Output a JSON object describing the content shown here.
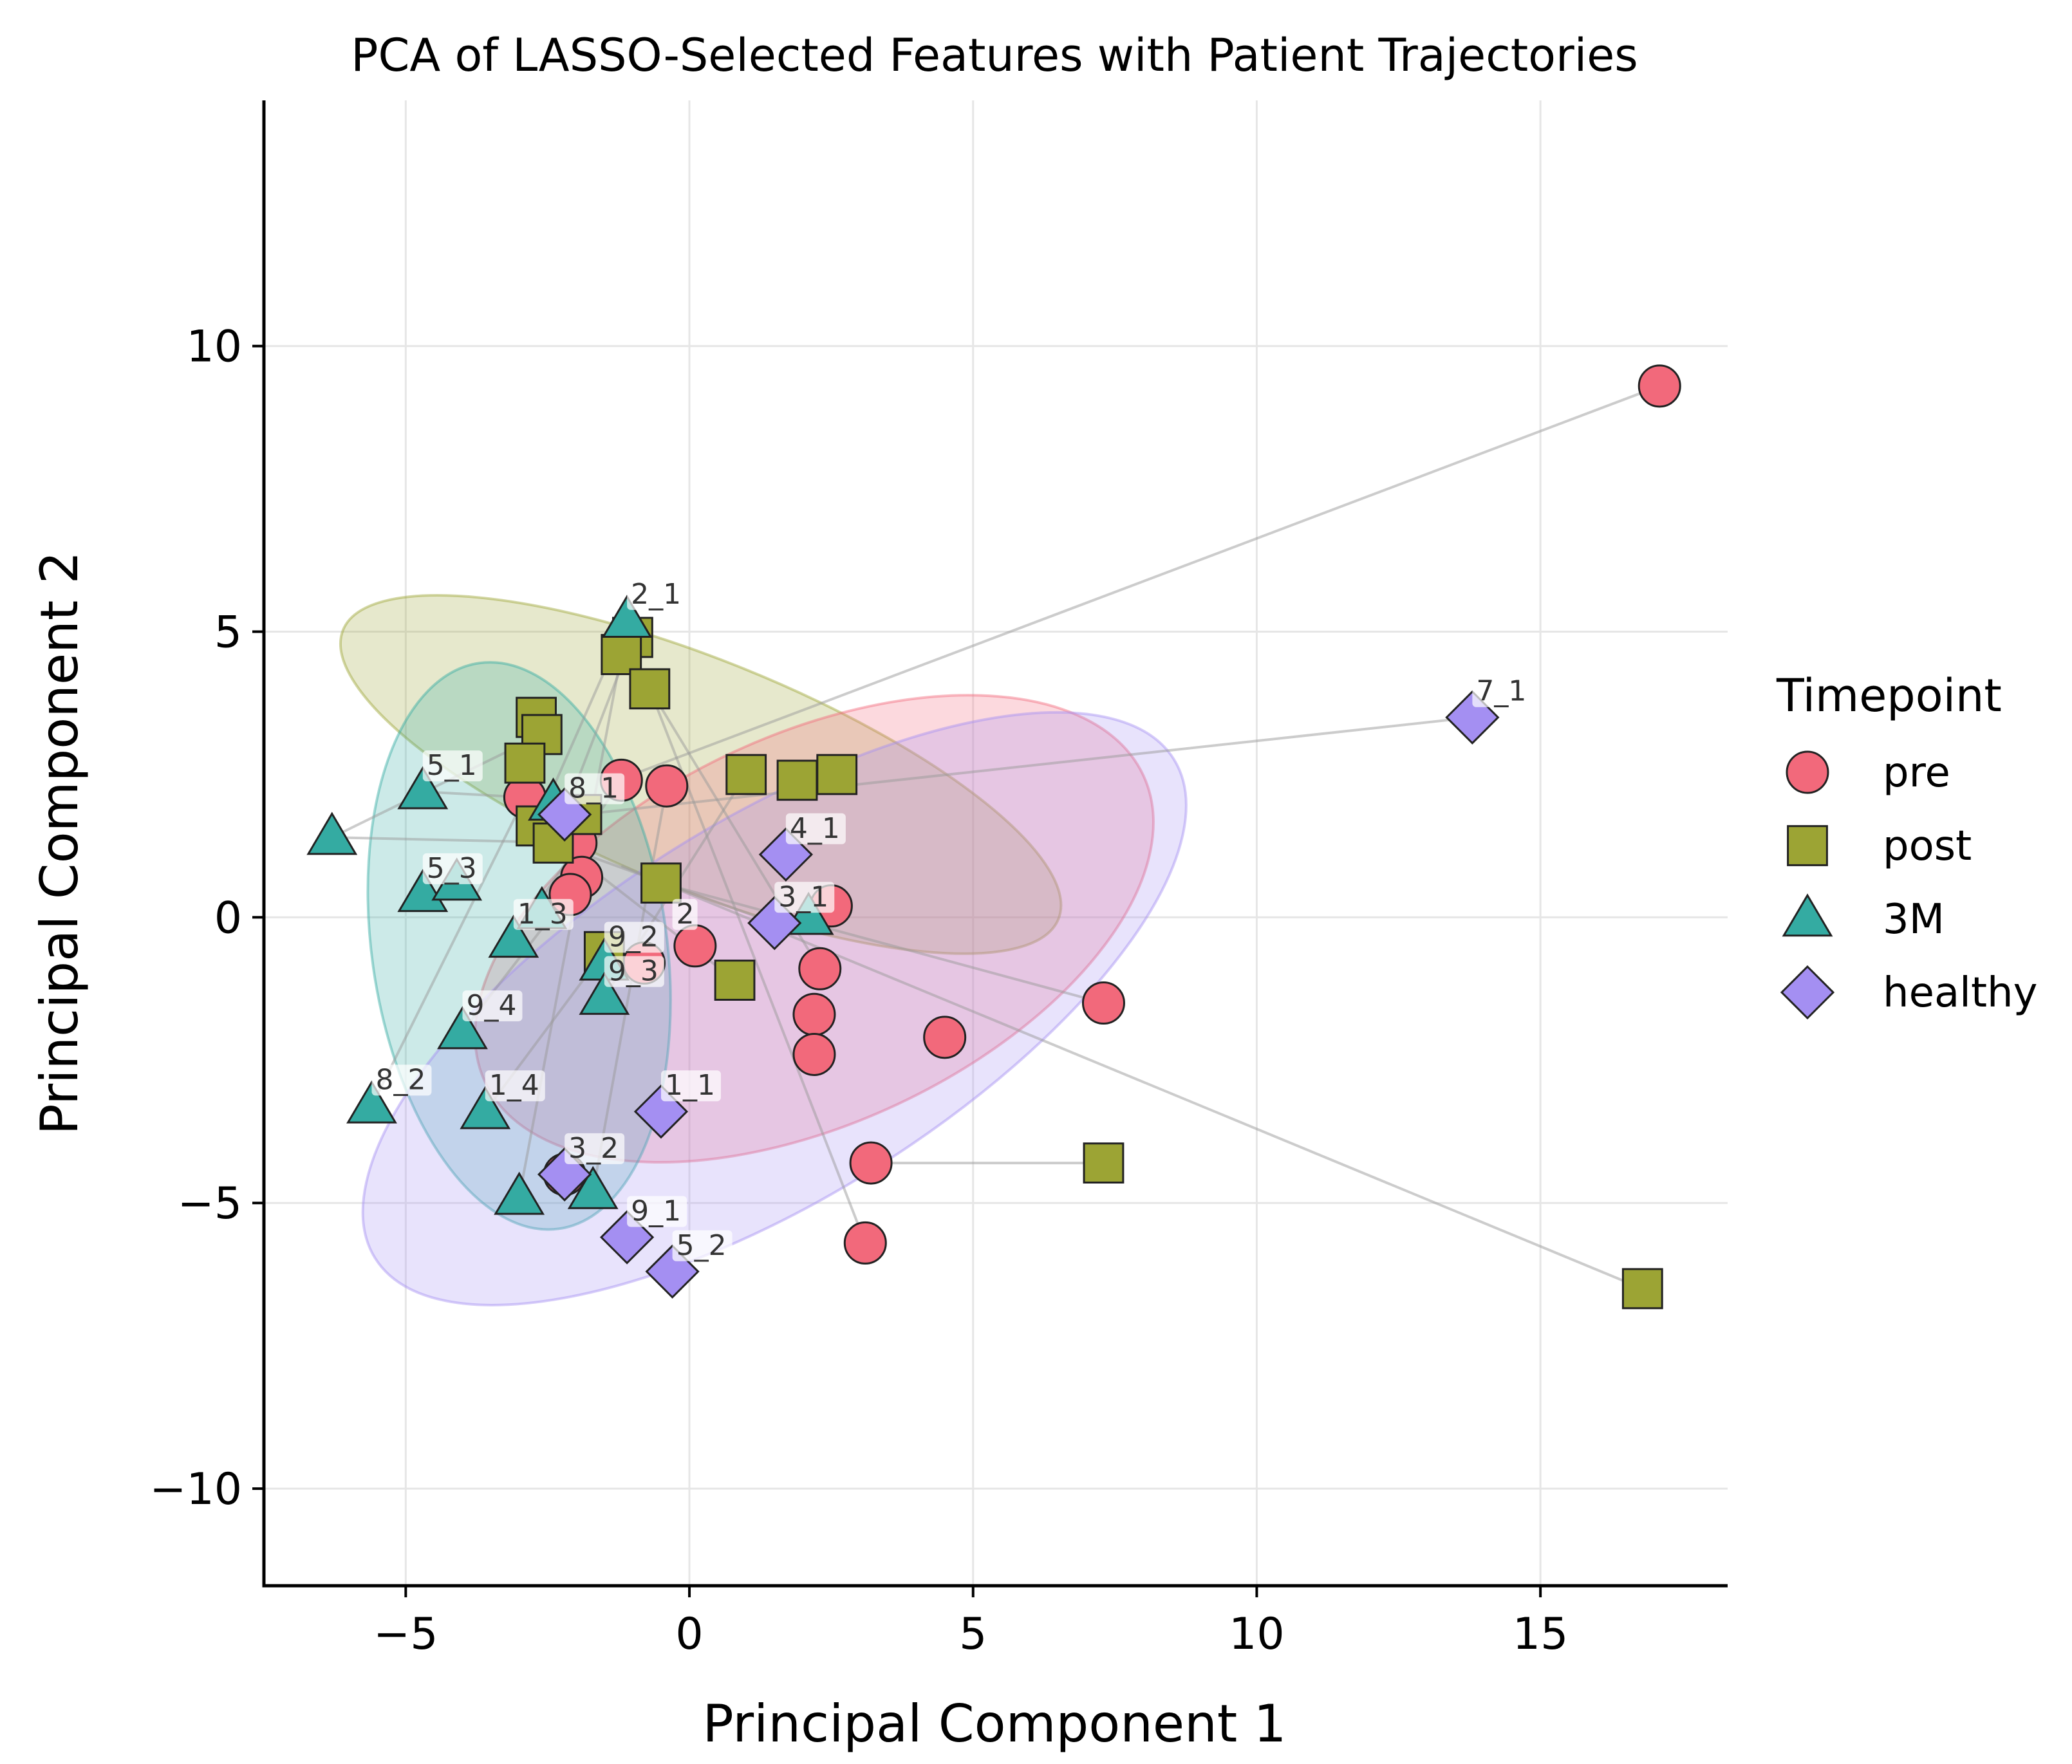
{
  "chart_data": {
    "type": "scatter",
    "title": "PCA of LASSO-Selected Features with Patient Trajectories",
    "xlabel": "Principal Component 1",
    "ylabel": "Principal Component 2",
    "xlim": [
      -7.5,
      18.3
    ],
    "ylim": [
      -11.7,
      14.3
    ],
    "xticks": [
      -5,
      0,
      5,
      10,
      15
    ],
    "yticks": [
      -10,
      -5,
      0,
      5,
      10
    ],
    "xtick_labels": [
      "−5",
      "0",
      "5",
      "10",
      "15"
    ],
    "ytick_labels": [
      "−10",
      "−5",
      "0",
      "5",
      "10"
    ],
    "grid": true,
    "legend": {
      "title": "Timepoint",
      "position": "right",
      "entries": [
        {
          "label": "pre",
          "marker": "circle",
          "color": "#f2697b"
        },
        {
          "label": "post",
          "marker": "square",
          "color": "#9ca434"
        },
        {
          "label": "3M",
          "marker": "triangle",
          "color": "#34aba2"
        },
        {
          "label": "healthy",
          "marker": "diamond",
          "color": "#a48ff2"
        }
      ]
    },
    "series": [
      {
        "name": "pre",
        "marker": "circle",
        "color": "#f2697b",
        "points": [
          {
            "x": 17.1,
            "y": 9.3
          },
          {
            "x": -2.0,
            "y": 1.3
          },
          {
            "x": -1.2,
            "y": 2.4
          },
          {
            "x": -0.4,
            "y": 2.3
          },
          {
            "x": -1.9,
            "y": 0.7
          },
          {
            "x": -2.1,
            "y": 0.4
          },
          {
            "x": -2.9,
            "y": 2.1
          },
          {
            "x": 0.1,
            "y": -0.5
          },
          {
            "x": -0.8,
            "y": -0.8
          },
          {
            "x": 2.5,
            "y": 0.2
          },
          {
            "x": 2.3,
            "y": -0.9
          },
          {
            "x": 2.2,
            "y": -1.7
          },
          {
            "x": 2.2,
            "y": -2.4
          },
          {
            "x": 4.5,
            "y": -2.1
          },
          {
            "x": 7.3,
            "y": -1.5
          },
          {
            "x": 3.2,
            "y": -4.3
          },
          {
            "x": 3.1,
            "y": -5.7
          },
          {
            "x": -2.2,
            "y": -4.5
          }
        ]
      },
      {
        "name": "post",
        "marker": "square",
        "color": "#9ca434",
        "points": [
          {
            "x": -1.0,
            "y": 4.9
          },
          {
            "x": -1.2,
            "y": 4.6
          },
          {
            "x": -0.7,
            "y": 4.0
          },
          {
            "x": -2.7,
            "y": 3.5
          },
          {
            "x": -2.6,
            "y": 3.2
          },
          {
            "x": -2.9,
            "y": 2.7
          },
          {
            "x": -2.7,
            "y": 1.6
          },
          {
            "x": -2.4,
            "y": 1.3
          },
          {
            "x": -1.9,
            "y": 1.8
          },
          {
            "x": 1.0,
            "y": 2.5
          },
          {
            "x": 1.9,
            "y": 2.4
          },
          {
            "x": 2.6,
            "y": 2.5
          },
          {
            "x": -0.5,
            "y": 0.6
          },
          {
            "x": -1.5,
            "y": -0.6
          },
          {
            "x": 0.8,
            "y": -1.1
          },
          {
            "x": 7.3,
            "y": -4.3
          },
          {
            "x": 16.8,
            "y": -6.5
          }
        ]
      },
      {
        "name": "3M",
        "marker": "triangle",
        "color": "#34aba2",
        "points": [
          {
            "x": -1.1,
            "y": 5.2,
            "label": "2_1"
          },
          {
            "x": -4.7,
            "y": 2.2,
            "label": "5_1"
          },
          {
            "x": -6.3,
            "y": 1.4
          },
          {
            "x": -2.4,
            "y": 2.0
          },
          {
            "x": -4.7,
            "y": 0.4,
            "label": "5_3"
          },
          {
            "x": -4.1,
            "y": 0.6
          },
          {
            "x": -3.1,
            "y": -0.4,
            "label": "1_3"
          },
          {
            "x": -2.6,
            "y": 0.1
          },
          {
            "x": -1.5,
            "y": -0.8,
            "label": "9_2"
          },
          {
            "x": -1.5,
            "y": -1.4,
            "label": "9_3"
          },
          {
            "x": 2.1,
            "y": 0.0
          },
          {
            "x": -4.0,
            "y": -2.0,
            "label": "9_4"
          },
          {
            "x": -5.6,
            "y": -3.3,
            "label": "8_2"
          },
          {
            "x": -3.6,
            "y": -3.4,
            "label": "1_4"
          },
          {
            "x": -3.0,
            "y": -4.9
          },
          {
            "x": -1.7,
            "y": -4.8
          }
        ]
      },
      {
        "name": "healthy",
        "marker": "diamond",
        "color": "#a48ff2",
        "points": [
          {
            "x": 13.8,
            "y": 3.5,
            "label": "7_1"
          },
          {
            "x": -2.2,
            "y": 1.8,
            "label": "8_1"
          },
          {
            "x": 1.7,
            "y": 1.1,
            "label": "4_1"
          },
          {
            "x": 1.5,
            "y": -0.1,
            "label": "3_1"
          },
          {
            "x": -0.5,
            "y": -3.4,
            "label": "1_1"
          },
          {
            "x": -1.1,
            "y": -5.6,
            "label": "9_1"
          },
          {
            "x": -0.3,
            "y": -6.2,
            "label": "5_2"
          },
          {
            "x": -2.2,
            "y": -4.5,
            "label": "3_2"
          }
        ]
      }
    ],
    "extra_labels": [
      {
        "text": "2",
        "x": -0.3,
        "y": -0.4
      }
    ],
    "ellipses": [
      {
        "group": "post",
        "color": "#9ca434",
        "cx": 0.2,
        "cy": 2.5,
        "rx": 6.8,
        "ry": 2.0,
        "angle_deg": -22
      },
      {
        "group": "pre",
        "color": "#f2697b",
        "cx": 2.2,
        "cy": -0.2,
        "rx": 6.4,
        "ry": 3.4,
        "angle_deg": 25
      },
      {
        "group": "3M",
        "color": "#34aba2",
        "cx": -3.0,
        "cy": -0.5,
        "rx": 2.6,
        "ry": 5.0,
        "angle_deg": 8
      },
      {
        "group": "healthy",
        "color": "#a48ff2",
        "cx": 1.5,
        "cy": -1.6,
        "rx": 8.3,
        "ry": 3.3,
        "angle_deg": 32
      }
    ],
    "trajectories": [
      [
        [
          17.1,
          9.3
        ],
        [
          -1.0,
          2.5
        ]
      ],
      [
        [
          16.8,
          -6.5
        ],
        [
          -1.2,
          0.9
        ]
      ],
      [
        [
          13.8,
          3.5
        ],
        [
          -1.9,
          1.8
        ]
      ],
      [
        [
          7.3,
          -4.3
        ],
        [
          3.2,
          -4.3
        ]
      ],
      [
        [
          7.3,
          -1.5
        ],
        [
          -0.5,
          0.6
        ]
      ],
      [
        [
          3.1,
          -5.7
        ],
        [
          -0.7,
          4.0
        ]
      ],
      [
        [
          -6.3,
          1.4
        ],
        [
          -2.6,
          3.2
        ]
      ],
      [
        [
          -6.3,
          1.4
        ],
        [
          -1.9,
          1.3
        ]
      ],
      [
        [
          -4.7,
          2.2
        ],
        [
          -2.9,
          2.1
        ]
      ],
      [
        [
          -5.6,
          -3.3
        ],
        [
          -2.9,
          2.1
        ]
      ],
      [
        [
          -3.6,
          -3.4
        ],
        [
          -1.5,
          -0.6
        ]
      ],
      [
        [
          -1.1,
          5.2
        ],
        [
          -2.7,
          1.6
        ]
      ],
      [
        [
          -1.2,
          4.6
        ],
        [
          -3.0,
          -4.9
        ]
      ],
      [
        [
          -1.0,
          4.9
        ],
        [
          -2.4,
          1.3
        ]
      ],
      [
        [
          -0.7,
          4.0
        ],
        [
          2.3,
          -0.9
        ]
      ],
      [
        [
          -4.0,
          -2.0
        ],
        [
          -1.9,
          0.7
        ]
      ],
      [
        [
          -1.7,
          -4.8
        ],
        [
          -0.4,
          2.3
        ]
      ],
      [
        [
          -1.5,
          -1.4
        ],
        [
          1.0,
          2.5
        ]
      ],
      [
        [
          -2.7,
          1.6
        ],
        [
          0.8,
          -1.1
        ]
      ],
      [
        [
          -2.4,
          1.3
        ],
        [
          1.5,
          -0.1
        ]
      ],
      [
        [
          -3.1,
          -0.4
        ],
        [
          -1.2,
          2.4
        ]
      ]
    ]
  }
}
